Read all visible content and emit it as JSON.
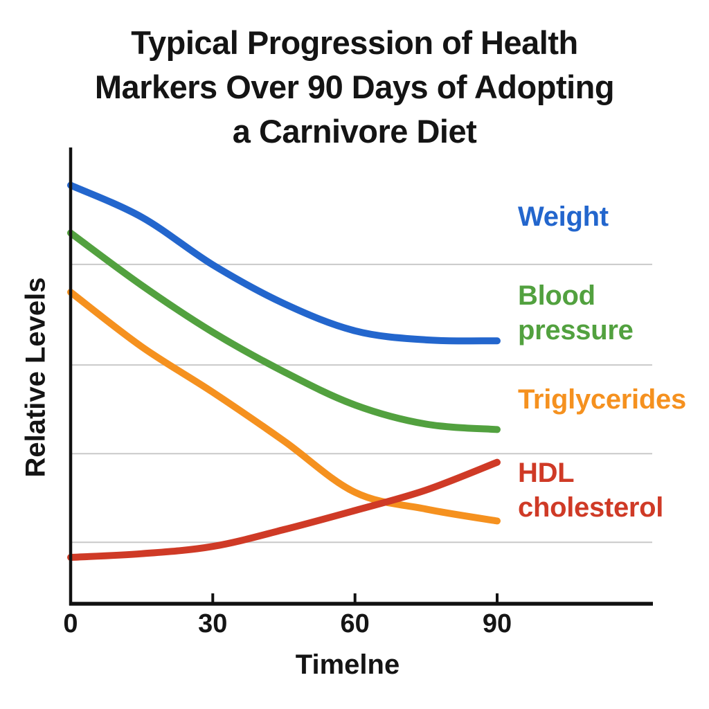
{
  "chart_data": {
    "type": "line",
    "title": "Typical Progression of Health Markers Over 90 Days of Adopting a Carnivore Diet",
    "title_lines": [
      "Typical Progression of Health",
      "Markers Over 90 Days of Adopting",
      "a Carnivore Diet"
    ],
    "xlabel": "Timelne",
    "ylabel": "Relative Levels",
    "x_unit": "days",
    "x": [
      0,
      15,
      30,
      45,
      60,
      75,
      90
    ],
    "x_ticks": [
      0,
      30,
      60,
      90
    ],
    "xlim": [
      0,
      90
    ],
    "ylim": [
      0,
      100
    ],
    "y_ticks_shown": false,
    "grid": "horizontal",
    "gridline_y_values": [
      74.6,
      52.5,
      33,
      13.5
    ],
    "legend_position": "right",
    "series": [
      {
        "name": "Weight",
        "color": "#2366cd",
        "values": [
          92,
          85,
          74.5,
          66,
          60,
          58,
          57.8
        ]
      },
      {
        "name": "Blood pressure",
        "color": "#52a13f",
        "values": [
          81.5,
          70,
          59.7,
          51,
          43.7,
          39.5,
          38.3
        ]
      },
      {
        "name": "Triglycerides",
        "color": "#f5911f",
        "values": [
          68.5,
          56.5,
          46.5,
          35.8,
          24.5,
          20.8,
          18.2
        ]
      },
      {
        "name": "HDL cholesterol",
        "color": "#cf3a26",
        "values": [
          10.2,
          11,
          12.6,
          16.3,
          20.5,
          25,
          31.1
        ]
      }
    ],
    "axis_color": "#111111",
    "gridline_color": "#c9c9c9",
    "text_color": "#141414"
  }
}
